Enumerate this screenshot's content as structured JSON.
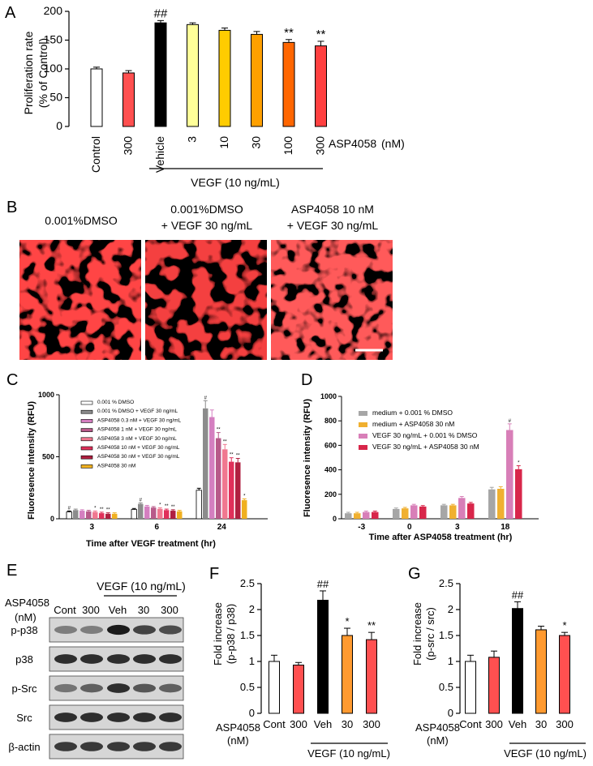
{
  "panels": {
    "A": {
      "letter": "A",
      "ylabel": [
        "Proliferation rate",
        "(% of Control)"
      ],
      "yticks": [
        0,
        50,
        100,
        150,
        200
      ],
      "ylim": [
        0,
        200
      ],
      "categories": [
        "Control",
        "300",
        "Vehicle",
        "3",
        "10",
        "30",
        "100",
        "300"
      ],
      "values": [
        100,
        93,
        180,
        177,
        167,
        160,
        146,
        140
      ],
      "errors": [
        3,
        4,
        4,
        3,
        4,
        5,
        5,
        8
      ],
      "colors": [
        "#ffffff",
        "#ff5050",
        "#000000",
        "#ffff99",
        "#ffcc00",
        "#ffa000",
        "#ff6600",
        "#ff4040"
      ],
      "marks": [
        "",
        "",
        "##",
        "",
        "",
        "",
        "**",
        "**"
      ],
      "compound_label": "ASP4058",
      "unit_label": "(nM)",
      "group_label": "VEGF (10 ng/mL)"
    },
    "B": {
      "letter": "B",
      "images": [
        {
          "line1": "0.001%DMSO",
          "line2": ""
        },
        {
          "line1": "0.001%DMSO",
          "line2": "+ VEGF 30 ng/mL"
        },
        {
          "line1": "ASP4058 10 nM",
          "line2": "+ VEGF 30 ng/mL"
        }
      ]
    },
    "C": {
      "letter": "C",
      "ylabel": "Fluoresence intensity (RFU)",
      "xlabel": "Time after VEGF treatment (hr)",
      "yticks": [
        0,
        500,
        1000
      ],
      "ylim": [
        0,
        1000
      ],
      "groups": [
        "3",
        "6",
        "24"
      ],
      "legend": [
        "0.001 % DMSO",
        "0.001 % DMSO + VEGF 30 ng/mL",
        "ASP4058 0.3 nM + VEGF 30 ng/mL",
        "ASP4058 1 nM + VEGF 30 ng/mL",
        "ASP4058 3 nM + VEGF 30 ng/mL",
        "ASP4058 10 nM + VEGF 30 ng/mL",
        "ASP4058 30 nM + VEGF 30 ng/mL",
        "ASP4058 30 nM"
      ],
      "colors": [
        "#ffffff",
        "#8c8c8c",
        "#d47fc0",
        "#b85a8a",
        "#f07890",
        "#e0305a",
        "#b02040",
        "#f0b020"
      ],
      "series_values": [
        [
          55,
          75,
          230
        ],
        [
          70,
          120,
          890
        ],
        [
          65,
          100,
          820
        ],
        [
          60,
          90,
          650
        ],
        [
          55,
          80,
          560
        ],
        [
          45,
          70,
          460
        ],
        [
          40,
          65,
          455
        ],
        [
          40,
          60,
          150
        ]
      ],
      "marks": [
        [
          "#",
          "",
          ""
        ],
        [
          "",
          "#",
          "#"
        ],
        [
          "",
          "",
          ""
        ],
        [
          "",
          "",
          "**"
        ],
        [
          "*",
          "*",
          "**"
        ],
        [
          "**",
          "**",
          "**"
        ],
        [
          "**",
          "**",
          "**"
        ],
        [
          "",
          "",
          "*"
        ]
      ]
    },
    "D": {
      "letter": "D",
      "ylabel": "Fluoresence intensity (RFU)",
      "xlabel": "Time after ASP4058 treatment (hr)",
      "yticks": [
        0,
        200,
        400,
        600,
        800,
        1000
      ],
      "ylim": [
        0,
        1000
      ],
      "groups": [
        "-3",
        "0",
        "3",
        "18"
      ],
      "legend": [
        "medium + 0.001 % DMSO",
        "medium + ASP4058 30 nM",
        "VEGF 30 ng/mL + 0.001 % DMSO",
        "VEGF 30 ng/mL + ASP4058 30 nM"
      ],
      "colors": [
        "#a6a6a6",
        "#f0b030",
        "#d87fb8",
        "#d8264a"
      ],
      "series_values": [
        [
          45,
          80,
          110,
          240
        ],
        [
          45,
          85,
          110,
          245
        ],
        [
          55,
          110,
          170,
          725
        ],
        [
          55,
          100,
          125,
          405
        ]
      ],
      "marks": [
        [
          "",
          "",
          "",
          ""
        ],
        [
          "",
          "",
          "",
          ""
        ],
        [
          "",
          "",
          "",
          "#"
        ],
        [
          "",
          "",
          "",
          "*"
        ]
      ]
    },
    "E": {
      "letter": "E",
      "group_label": "VEGF (10 ng/mL)",
      "compound_label": "ASP4058",
      "unit_label": "(nM)",
      "lanes": [
        "Cont",
        "300",
        "Veh",
        "30",
        "300"
      ],
      "rows": [
        "p-p38",
        "p38",
        "p-Src",
        "Src",
        "β-actin"
      ]
    },
    "F": {
      "letter": "F",
      "ylabel": [
        "Fold increase",
        "(p-p38 / p38)"
      ],
      "yticks": [
        "0",
        "0.5",
        "1",
        "1.5",
        "2",
        "2.5"
      ],
      "ylim": [
        0,
        2.5
      ],
      "categories": [
        "Cont",
        "300",
        "Veh",
        "30",
        "300"
      ],
      "values": [
        1.0,
        0.93,
        2.18,
        1.5,
        1.42
      ],
      "errors": [
        0.12,
        0.05,
        0.18,
        0.14,
        0.14
      ],
      "colors": [
        "#ffffff",
        "#ff5050",
        "#000000",
        "#ff9a30",
        "#ff5050"
      ],
      "marks": [
        "",
        "",
        "##",
        "*",
        "**"
      ],
      "compound_label": "ASP4058",
      "unit_label": "(nM)",
      "group_label": "VEGF (10 ng/mL)"
    },
    "G": {
      "letter": "G",
      "ylabel": [
        "Fold increase",
        "(p-src / src)"
      ],
      "yticks": [
        "0",
        "0.5",
        "1",
        "1.5",
        "2",
        "2.5"
      ],
      "ylim": [
        0,
        2.5
      ],
      "categories": [
        "Cont",
        "300",
        "Veh",
        "30",
        "300"
      ],
      "values": [
        1.0,
        1.08,
        2.02,
        1.61,
        1.5
      ],
      "errors": [
        0.12,
        0.12,
        0.13,
        0.07,
        0.06
      ],
      "colors": [
        "#ffffff",
        "#ff5050",
        "#000000",
        "#ff9a30",
        "#ff5050"
      ],
      "marks": [
        "",
        "",
        "##",
        "",
        "*"
      ],
      "compound_label": "ASP4058",
      "unit_label": "(nM)",
      "group_label": "VEGF (10 ng/mL)"
    }
  },
  "chart_data": [
    {
      "panel": "A",
      "type": "bar",
      "ylabel": "Proliferation rate (% of Control)",
      "categories": [
        "Control",
        "300",
        "Vehicle",
        "3",
        "10",
        "30",
        "100",
        "300"
      ],
      "values": [
        100,
        93,
        180,
        177,
        167,
        160,
        146,
        140
      ],
      "errors": [
        3,
        4,
        4,
        3,
        4,
        5,
        5,
        8
      ],
      "ylim": [
        0,
        200
      ],
      "annotations": [
        "##",
        "**",
        "**"
      ]
    },
    {
      "panel": "C",
      "type": "bar",
      "xlabel": "Time after VEGF treatment (hr)",
      "ylabel": "Fluoresence intensity (RFU)",
      "categories": [
        "3",
        "6",
        "24"
      ],
      "series": [
        {
          "name": "0.001 % DMSO",
          "values": [
            55,
            75,
            230
          ]
        },
        {
          "name": "0.001 % DMSO + VEGF 30 ng/mL",
          "values": [
            70,
            120,
            890
          ]
        },
        {
          "name": "ASP4058 0.3 nM + VEGF 30 ng/mL",
          "values": [
            65,
            100,
            820
          ]
        },
        {
          "name": "ASP4058 1 nM + VEGF 30 ng/mL",
          "values": [
            60,
            90,
            650
          ]
        },
        {
          "name": "ASP4058 3 nM + VEGF 30 ng/mL",
          "values": [
            55,
            80,
            560
          ]
        },
        {
          "name": "ASP4058 10 nM + VEGF 30 ng/mL",
          "values": [
            45,
            70,
            460
          ]
        },
        {
          "name": "ASP4058 30 nM + VEGF 30 ng/mL",
          "values": [
            40,
            65,
            455
          ]
        },
        {
          "name": "ASP4058 30 nM",
          "values": [
            40,
            60,
            150
          ]
        }
      ],
      "ylim": [
        0,
        1000
      ],
      "legend": "top-left"
    },
    {
      "panel": "D",
      "type": "bar",
      "xlabel": "Time after ASP4058 treatment (hr)",
      "ylabel": "Fluoresence intensity (RFU)",
      "categories": [
        "-3",
        "0",
        "3",
        "18"
      ],
      "series": [
        {
          "name": "medium + 0.001 % DMSO",
          "values": [
            45,
            80,
            110,
            240
          ]
        },
        {
          "name": "medium + ASP4058 30 nM",
          "values": [
            45,
            85,
            110,
            245
          ]
        },
        {
          "name": "VEGF 30 ng/mL + 0.001 % DMSO",
          "values": [
            55,
            110,
            170,
            725
          ]
        },
        {
          "name": "VEGF 30 ng/mL + ASP4058 30 nM",
          "values": [
            55,
            100,
            125,
            405
          ]
        }
      ],
      "ylim": [
        0,
        1000
      ],
      "legend": "top-left"
    },
    {
      "panel": "F",
      "type": "bar",
      "ylabel": "Fold increase (p-p38 / p38)",
      "categories": [
        "Cont",
        "300",
        "Veh",
        "30",
        "300"
      ],
      "values": [
        1.0,
        0.93,
        2.18,
        1.5,
        1.42
      ],
      "errors": [
        0.12,
        0.05,
        0.18,
        0.14,
        0.14
      ],
      "ylim": [
        0,
        2.5
      ],
      "annotations": [
        "##",
        "*",
        "**"
      ]
    },
    {
      "panel": "G",
      "type": "bar",
      "ylabel": "Fold increase (p-src / src)",
      "categories": [
        "Cont",
        "300",
        "Veh",
        "30",
        "300"
      ],
      "values": [
        1.0,
        1.08,
        2.02,
        1.61,
        1.5
      ],
      "errors": [
        0.12,
        0.12,
        0.13,
        0.07,
        0.06
      ],
      "ylim": [
        0,
        2.5
      ],
      "annotations": [
        "##",
        "*"
      ]
    }
  ]
}
